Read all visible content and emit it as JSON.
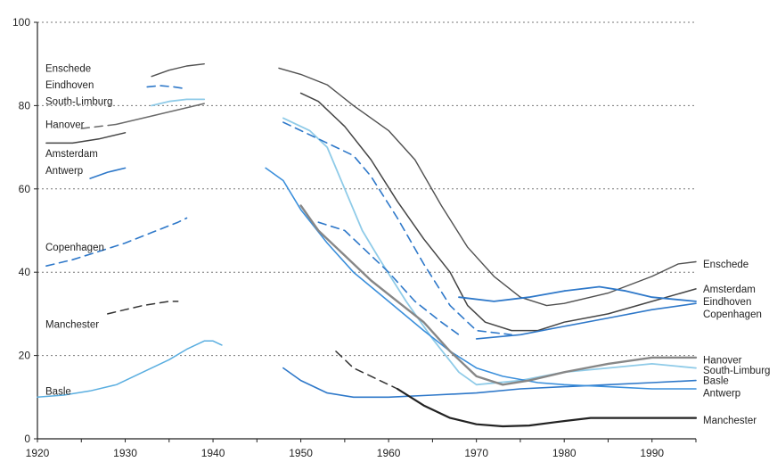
{
  "chart_data": {
    "type": "line",
    "xlim": [
      1920,
      1995
    ],
    "ylim": [
      0,
      100
    ],
    "x_ticks": [
      1920,
      1930,
      1940,
      1950,
      1960,
      1970,
      1980,
      1990
    ],
    "y_ticks": [
      0,
      20,
      40,
      60,
      80,
      100
    ],
    "grid": "horizontal dotted lines at 20, 40, 60, 80",
    "series": [
      {
        "name": "Enschede",
        "color": "#505050",
        "dash": false,
        "width": 1.4,
        "segments": [
          [
            [
              1933,
              87
            ],
            [
              1935,
              88.5
            ],
            [
              1937,
              89.5
            ],
            [
              1939,
              90
            ]
          ],
          [
            [
              1947.5,
              89
            ],
            [
              1950,
              87.5
            ],
            [
              1953,
              85
            ],
            [
              1956,
              80
            ],
            [
              1960,
              74
            ],
            [
              1963,
              67
            ],
            [
              1966,
              56
            ],
            [
              1969,
              46
            ],
            [
              1972,
              39
            ],
            [
              1975,
              34
            ],
            [
              1978,
              32
            ],
            [
              1980,
              32.5
            ],
            [
              1985,
              35
            ],
            [
              1990,
              39
            ],
            [
              1993,
              42
            ],
            [
              1995,
              42.5
            ]
          ]
        ]
      },
      {
        "name": "Eindhoven",
        "color": "#2e78c9",
        "dash": true,
        "width": 1.6,
        "segments": [
          [
            [
              1932.5,
              84.5
            ],
            [
              1934,
              84.8
            ],
            [
              1935.5,
              84.5
            ],
            [
              1937,
              84
            ]
          ]
        ]
      },
      {
        "name": "South-Limburg",
        "color": "#8fcbe8",
        "dash": false,
        "width": 1.8,
        "segments": [
          [
            [
              1933,
              80
            ],
            [
              1935,
              81
            ],
            [
              1937,
              81.5
            ],
            [
              1939,
              81.5
            ]
          ],
          [
            [
              1948,
              77
            ],
            [
              1951,
              74
            ],
            [
              1953,
              70
            ],
            [
              1955,
              60
            ],
            [
              1957,
              50
            ],
            [
              1959,
              43
            ],
            [
              1962,
              33
            ],
            [
              1965,
              24
            ],
            [
              1968,
              16
            ],
            [
              1970,
              13
            ],
            [
              1975,
              14
            ],
            [
              1980,
              16
            ],
            [
              1985,
              17
            ],
            [
              1990,
              18
            ],
            [
              1995,
              17
            ]
          ]
        ]
      },
      {
        "name": "Hanover",
        "color": "#6a6a6a",
        "dash": true,
        "width": 1.5,
        "segments": [
          [
            [
              1925,
              74.5
            ],
            [
              1927,
              75
            ],
            [
              1929,
              75.5
            ]
          ]
        ]
      },
      {
        "name": "Hanover",
        "color": "#6a6a6a",
        "dash": false,
        "width": 1.5,
        "segments": [
          [
            [
              1929,
              75.5
            ],
            [
              1933,
              77.5
            ],
            [
              1936,
              79
            ],
            [
              1939,
              80.5
            ]
          ]
        ]
      },
      {
        "name": "Amsterdam",
        "color": "#444444",
        "dash": false,
        "width": 1.5,
        "segments": [
          [
            [
              1921,
              71
            ],
            [
              1924,
              71
            ],
            [
              1927,
              72
            ],
            [
              1930,
              73.5
            ]
          ],
          [
            [
              1950,
              83
            ],
            [
              1952,
              81
            ],
            [
              1955,
              75
            ],
            [
              1958,
              67
            ],
            [
              1961,
              57
            ],
            [
              1964,
              48
            ],
            [
              1967,
              40
            ],
            [
              1969,
              32
            ],
            [
              1971,
              28
            ],
            [
              1974,
              26
            ],
            [
              1977,
              26
            ],
            [
              1980,
              28
            ],
            [
              1985,
              30
            ],
            [
              1990,
              33
            ],
            [
              1995,
              36
            ]
          ]
        ]
      },
      {
        "name": "Antwerp",
        "color": "#2e78c9",
        "dash": false,
        "width": 1.6,
        "segments": [
          [
            [
              1926,
              62.5
            ],
            [
              1928,
              64
            ],
            [
              1930,
              65
            ]
          ],
          [
            [
              1948,
              17
            ],
            [
              1950,
              14
            ],
            [
              1953,
              11
            ],
            [
              1956,
              10
            ],
            [
              1960,
              10
            ],
            [
              1965,
              10.5
            ],
            [
              1970,
              11
            ],
            [
              1975,
              12
            ],
            [
              1980,
              12.5
            ],
            [
              1985,
              13
            ],
            [
              1990,
              13.5
            ],
            [
              1995,
              14
            ]
          ]
        ]
      },
      {
        "name": "Copenhagen",
        "color": "#2e78c9",
        "dash": true,
        "width": 1.6,
        "segments": [
          [
            [
              1921,
              41.5
            ],
            [
              1924,
              43
            ],
            [
              1927,
              45
            ],
            [
              1930,
              47
            ],
            [
              1933,
              49.5
            ],
            [
              1936,
              52
            ],
            [
              1937,
              53
            ]
          ],
          [
            [
              1948,
              76
            ],
            [
              1950,
              74
            ],
            [
              1953,
              71
            ],
            [
              1956,
              68
            ],
            [
              1958,
              63
            ],
            [
              1961,
              53
            ],
            [
              1964,
              42
            ],
            [
              1967,
              32
            ],
            [
              1970,
              26
            ],
            [
              1974,
              25
            ]
          ]
        ]
      },
      {
        "name": "Copenhagen",
        "color": "#2e78c9",
        "dash": false,
        "width": 1.6,
        "segments": [
          [
            [
              1970,
              24
            ],
            [
              1975,
              25
            ],
            [
              1980,
              27
            ],
            [
              1985,
              29
            ],
            [
              1990,
              31
            ],
            [
              1995,
              32.5
            ]
          ]
        ]
      },
      {
        "name": "Manchester",
        "color": "#333333",
        "dash": true,
        "width": 1.5,
        "segments": [
          [
            [
              1928,
              30
            ],
            [
              1930,
              31
            ],
            [
              1932,
              32
            ],
            [
              1935,
              33
            ],
            [
              1936,
              33
            ]
          ],
          [
            [
              1954,
              21
            ],
            [
              1956,
              17
            ],
            [
              1959,
              14
            ],
            [
              1961,
              12
            ]
          ]
        ]
      },
      {
        "name": "Manchester",
        "color": "#222222",
        "dash": false,
        "width": 2.2,
        "segments": [
          [
            [
              1961,
              12
            ],
            [
              1964,
              8
            ],
            [
              1967,
              5
            ],
            [
              1970,
              3.5
            ],
            [
              1973,
              3
            ],
            [
              1976,
              3.2
            ],
            [
              1979,
              4
            ],
            [
              1983,
              5
            ],
            [
              1988,
              5
            ],
            [
              1995,
              5
            ]
          ]
        ]
      },
      {
        "name": "Basle",
        "color": "#5aaee0",
        "dash": false,
        "width": 1.5,
        "segments": [
          [
            [
              1920,
              10
            ],
            [
              1923,
              10.5
            ],
            [
              1926,
              11.5
            ],
            [
              1929,
              13
            ],
            [
              1932,
              16
            ],
            [
              1935,
              19
            ],
            [
              1937,
              21.5
            ],
            [
              1939,
              23.5
            ],
            [
              1940,
              23.5
            ],
            [
              1941,
              22.5
            ]
          ]
        ]
      },
      {
        "name": "Basle",
        "color": "#3b8fdb",
        "dash": false,
        "width": 1.6,
        "segments": [
          [
            [
              1946,
              65
            ],
            [
              1948,
              62
            ],
            [
              1950,
              55
            ],
            [
              1953,
              47
            ],
            [
              1956,
              40
            ],
            [
              1960,
              33
            ],
            [
              1964,
              26
            ],
            [
              1967,
              21
            ],
            [
              1970,
              17
            ],
            [
              1973,
              15
            ],
            [
              1977,
              13.5
            ],
            [
              1980,
              13
            ],
            [
              1985,
              12.5
            ],
            [
              1990,
              12
            ],
            [
              1995,
              12
            ]
          ]
        ]
      },
      {
        "name": "Hanover",
        "color": "#878787",
        "dash": false,
        "width": 2.4,
        "segments": [
          [
            [
              1950,
              56
            ],
            [
              1952,
              50
            ],
            [
              1955,
              44
            ],
            [
              1958,
              38
            ],
            [
              1961,
              33
            ],
            [
              1964,
              28
            ],
            [
              1967,
              21
            ],
            [
              1970,
              15
            ],
            [
              1973,
              13
            ],
            [
              1976,
              14
            ],
            [
              1980,
              16
            ],
            [
              1985,
              18
            ],
            [
              1990,
              19.5
            ],
            [
              1995,
              19.5
            ]
          ]
        ]
      },
      {
        "name": "Eindhoven",
        "color": "#2e78c9",
        "dash": true,
        "width": 1.6,
        "segments": [
          [
            [
              1952,
              52
            ],
            [
              1955,
              50
            ],
            [
              1957,
              46
            ],
            [
              1960,
              40
            ],
            [
              1963,
              33
            ],
            [
              1966,
              28
            ],
            [
              1968,
              25
            ]
          ]
        ]
      },
      {
        "name": "Eindhoven",
        "color": "#2e78c9",
        "dash": false,
        "width": 1.8,
        "segments": [
          [
            [
              1968,
              34
            ],
            [
              1972,
              33
            ],
            [
              1976,
              34
            ],
            [
              1980,
              35.5
            ],
            [
              1984,
              36.5
            ],
            [
              1987,
              35.5
            ],
            [
              1990,
              34
            ],
            [
              1995,
              33
            ]
          ]
        ]
      }
    ],
    "left_labels": [
      {
        "text": "Enschede",
        "y": 89
      },
      {
        "text": "Eindhoven",
        "y": 85
      },
      {
        "text": "South-Limburg",
        "y": 81
      },
      {
        "text": "Hanover",
        "y": 75.5
      },
      {
        "text": "Amsterdam",
        "y": 68.5
      },
      {
        "text": "Antwerp",
        "y": 64.5
      },
      {
        "text": "Copenhagen",
        "y": 46
      },
      {
        "text": "Manchester",
        "y": 27.5
      },
      {
        "text": "Basle",
        "y": 11.5
      }
    ],
    "right_labels": [
      {
        "text": "Enschede",
        "y": 42
      },
      {
        "text": "Amsterdam",
        "y": 36
      },
      {
        "text": "Eindhoven",
        "y": 33
      },
      {
        "text": "Copenhagen",
        "y": 30
      },
      {
        "text": "Hanover",
        "y": 19
      },
      {
        "text": "South-Limburg",
        "y": 16.5
      },
      {
        "text": "Basle",
        "y": 14
      },
      {
        "text": "Antwerp",
        "y": 11
      },
      {
        "text": "Manchester",
        "y": 4.5
      }
    ]
  }
}
